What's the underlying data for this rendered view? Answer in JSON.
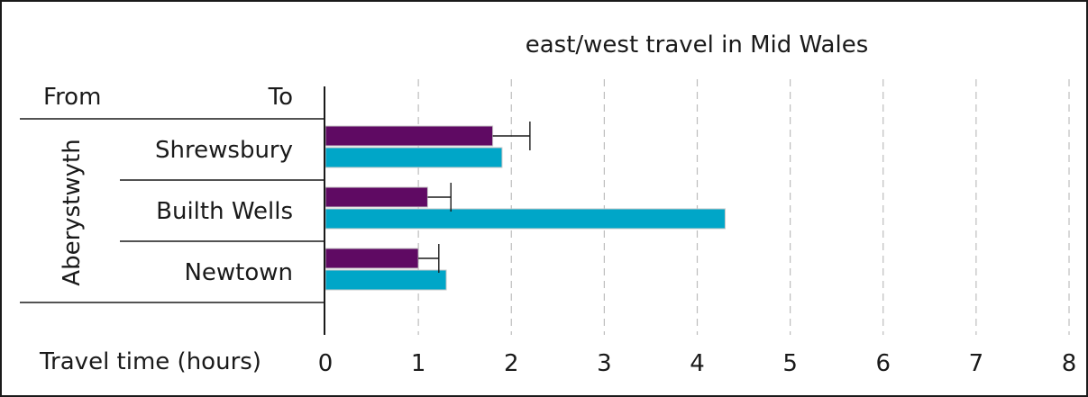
{
  "chart_data": {
    "type": "bar",
    "orientation": "horizontal",
    "title": "east/west travel in Mid Wales",
    "xlabel": "Travel time (hours)",
    "ylabel": "",
    "xlim": [
      0,
      8
    ],
    "xticks": [
      0,
      1,
      2,
      3,
      4,
      5,
      6,
      7,
      8
    ],
    "grid": "vertical dashed",
    "headers": {
      "from": "From",
      "to": "To"
    },
    "group_label": "Aberystwyth",
    "categories": [
      "Shrewsbury",
      "Builth Wells",
      "Newtown"
    ],
    "series": [
      {
        "color": "#5f0a63",
        "values": [
          1.8,
          1.1,
          1.0
        ],
        "error_upper": [
          2.2,
          1.35,
          1.22
        ]
      },
      {
        "color": "#00a6c8",
        "values": [
          1.9,
          4.3,
          1.3
        ]
      }
    ]
  }
}
